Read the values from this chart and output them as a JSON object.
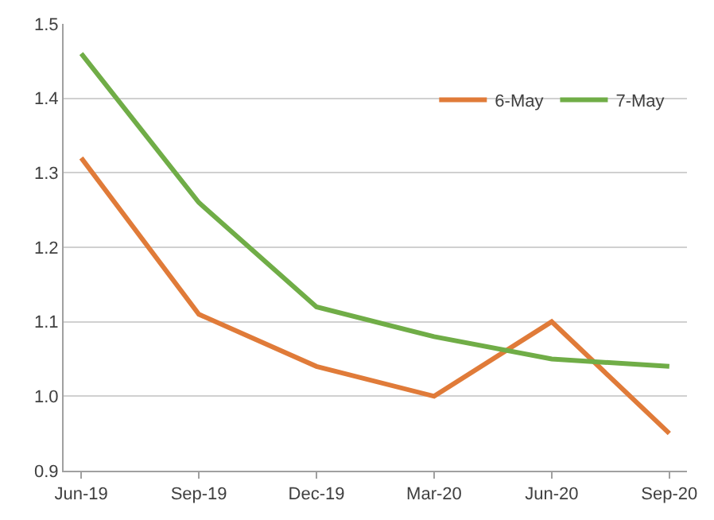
{
  "chart_data": {
    "type": "line",
    "categories": [
      "Jun-19",
      "Sep-19",
      "Dec-19",
      "Mar-20",
      "Jun-20",
      "Sep-20"
    ],
    "series": [
      {
        "name": "6-May",
        "color": "#e07b39",
        "values": [
          1.32,
          1.11,
          1.04,
          1.0,
          1.1,
          0.95
        ]
      },
      {
        "name": "7-May",
        "color": "#70ad47",
        "values": [
          1.46,
          1.26,
          1.12,
          1.08,
          1.05,
          1.04
        ]
      }
    ],
    "ylim": [
      0.9,
      1.5
    ],
    "yticks": [
      0.9,
      {
        "value": 1.0,
        "label": "1.0"
      },
      1.1,
      1.2,
      1.3,
      1.4,
      1.5
    ],
    "grid": "y",
    "legend": "top right",
    "marker": "none",
    "line_style": "solid"
  }
}
